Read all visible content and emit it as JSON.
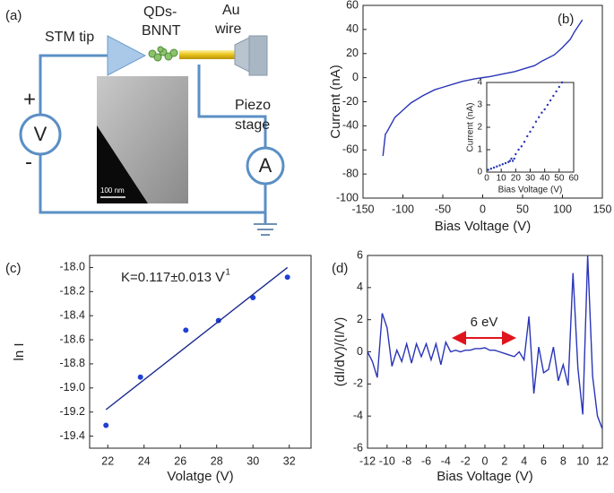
{
  "diagram": {
    "label": "(a)",
    "stm": "STM tip",
    "qd1": "QDs-",
    "qd2": "BNNT",
    "au1": "Au",
    "au2": "wire",
    "pz1": "Piezo",
    "pz2": "stage",
    "plus": "+",
    "minus": "-",
    "volt": "V",
    "amp": "A",
    "scale": "100 nm"
  },
  "chart_data": [
    {
      "type": "line",
      "label": "(b)",
      "xlabel": "Bias Voltage (V)",
      "ylabel": "Current (nA)",
      "xlim": [
        -150,
        150
      ],
      "xticks": [
        -150,
        -100,
        -50,
        0,
        50,
        100,
        150
      ],
      "ylim": [
        -100,
        60
      ],
      "yticks": [
        -100,
        -80,
        -60,
        -40,
        -20,
        0,
        20,
        40,
        60
      ],
      "series": [
        {
          "color": "#2a35b8",
          "x": [
            -125,
            -122,
            -120,
            -110,
            -100,
            -90,
            -75,
            -60,
            -50,
            -35,
            -25,
            -10,
            0,
            10,
            25,
            40,
            50,
            65,
            75,
            90,
            100,
            110,
            115,
            120,
            125
          ],
          "values": [
            -65,
            -47,
            -45,
            -33,
            -27,
            -21,
            -15,
            -10,
            -8,
            -5,
            -3,
            -1,
            0,
            1,
            3,
            5,
            7,
            10,
            14,
            19,
            25,
            32,
            38,
            43,
            48
          ]
        }
      ]
    },
    {
      "type": "scatter",
      "xlabel": "Bias Voltage (V)",
      "ylabel": "Current (nA)",
      "xlim": [
        0,
        60
      ],
      "xticks": [
        0,
        10,
        20,
        30,
        40,
        50,
        60
      ],
      "ylim": [
        0,
        4
      ],
      "yticks": [
        0,
        1,
        2,
        3,
        4
      ],
      "series": [
        {
          "color": "#2a35b8",
          "x": [
            1,
            3,
            5,
            7,
            9,
            11,
            13,
            15,
            16,
            17,
            18,
            19,
            20,
            22,
            24,
            26,
            28,
            30,
            32,
            34,
            36,
            38,
            40,
            42,
            44,
            46,
            48,
            50,
            52
          ],
          "values": [
            0.1,
            0.15,
            0.2,
            0.25,
            0.3,
            0.35,
            0.4,
            0.45,
            0.5,
            0.6,
            0.5,
            0.6,
            0.8,
            1.0,
            1.15,
            1.35,
            1.6,
            1.8,
            2.0,
            2.25,
            2.45,
            2.65,
            2.8,
            3.0,
            3.2,
            3.4,
            3.6,
            3.8,
            4.0
          ]
        }
      ]
    },
    {
      "type": "scatter",
      "label": "(c)",
      "xlabel": "Volatge (V)",
      "ylabel": "ln I",
      "annotation": "K=0.117±0.013 V",
      "annotation_sup": "-1",
      "xlim": [
        21,
        33.2
      ],
      "xticks": [
        22,
        24,
        26,
        28,
        30,
        32
      ],
      "ylim": [
        -19.5,
        -17.9
      ],
      "yticks": [
        {
          "value": -18,
          "label": "-18.0"
        },
        -18.2,
        -18.4,
        -18.6,
        -18.8,
        {
          "value": -19,
          "label": "-19.0"
        },
        -19.2,
        -19.4
      ],
      "series": [
        {
          "color": "#1f3fd6",
          "x": [
            21.9,
            23.8,
            26.3,
            28.1,
            30,
            31.9
          ],
          "values": [
            -19.31,
            -18.91,
            -18.52,
            -18.44,
            -18.25,
            -18.08
          ]
        }
      ],
      "fit_line": {
        "color": "#1a2a8c",
        "x": [
          21.9,
          31.9
        ],
        "values": [
          -19.18,
          -18.0
        ]
      }
    },
    {
      "type": "line",
      "label": "(d)",
      "xlabel": "Bias Voltage (V)",
      "ylabel": "(dI/dV)/(I/V)",
      "annotation": "6 eV",
      "xlim": [
        -12,
        12
      ],
      "xticks": [
        -12,
        -10,
        -8,
        -6,
        -4,
        -2,
        0,
        2,
        4,
        6,
        8,
        10,
        12
      ],
      "ylim": [
        -6,
        6
      ],
      "yticks": [
        -6,
        -4,
        -2,
        0,
        2,
        4,
        6
      ],
      "series": [
        {
          "color": "#2a35b8",
          "x": [
            -12,
            -11.5,
            -11,
            -10.5,
            -10,
            -9.5,
            -9,
            -8.5,
            -8,
            -7.5,
            -7,
            -6.5,
            -6,
            -5.5,
            -5,
            -4.5,
            -4,
            -3.5,
            -3,
            -2.5,
            -2,
            -1.5,
            -1,
            -0.5,
            0,
            0.5,
            1,
            1.5,
            2,
            2.5,
            3,
            3.5,
            4,
            4.5,
            5,
            5.5,
            6,
            6.5,
            7,
            7.5,
            8,
            8.5,
            9,
            9.5,
            10,
            10.5,
            11,
            11.5,
            12
          ],
          "values": [
            0,
            -0.6,
            -1.6,
            2.4,
            1.5,
            -0.9,
            0.1,
            -0.6,
            0.5,
            -0.7,
            0.5,
            -0.3,
            0.5,
            -0.5,
            0.5,
            -0.8,
            0.6,
            0,
            0.1,
            0,
            0.1,
            0.1,
            0.2,
            0.2,
            0.25,
            0.1,
            0.1,
            0,
            -0.1,
            -0.2,
            -0.3,
            0,
            -0.5,
            2.2,
            -2.6,
            0.3,
            -1.3,
            -1.1,
            0.3,
            -1.8,
            -0.8,
            -2.1,
            4.9,
            -1.0,
            -3.9,
            6,
            -1.5,
            -4.0,
            -4.8
          ]
        }
      ]
    }
  ]
}
